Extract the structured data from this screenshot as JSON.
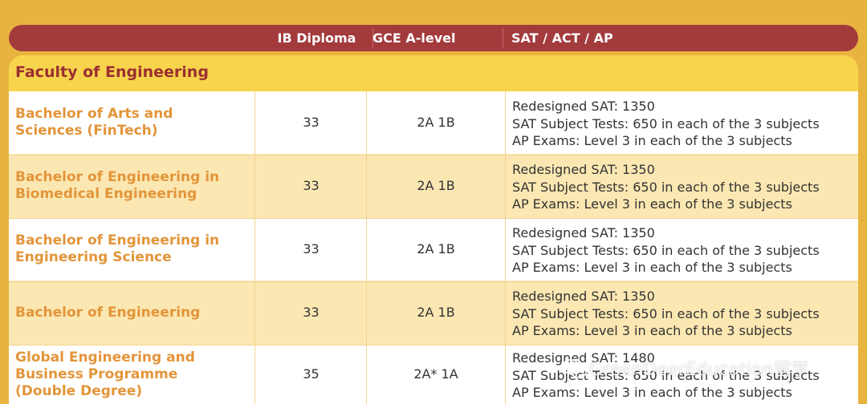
{
  "header": {
    "col_ib": "IB Diploma",
    "col_gce": "GCE A-level",
    "col_sat": "SAT / ACT / AP"
  },
  "faculty": "Faculty of Engineering",
  "rows": [
    {
      "program_line1": "Bachelor of Arts and",
      "program_line2": "Sciences (FinTech)",
      "program_line3": "",
      "ib": "33",
      "gce": "2A 1B",
      "sat": [
        "Redesigned SAT: 1350",
        "SAT Subject Tests: 650 in each of the 3 subjects",
        "AP Exams: Level 3 in each of the 3 subjects"
      ]
    },
    {
      "program_line1": "Bachelor of Engineering in",
      "program_line2": "Biomedical Engineering",
      "program_line3": "",
      "ib": "33",
      "gce": "2A 1B",
      "sat": [
        "Redesigned SAT: 1350",
        "SAT Subject Tests: 650 in each of the 3 subjects",
        "AP Exams: Level 3 in each of the 3 subjects"
      ]
    },
    {
      "program_line1": "Bachelor of Engineering in",
      "program_line2": "Engineering Science",
      "program_line3": "",
      "ib": "33",
      "gce": "2A 1B",
      "sat": [
        "Redesigned SAT: 1350",
        "SAT Subject Tests: 650 in each of the 3 subjects",
        "AP Exams: Level 3 in each of the 3 subjects"
      ]
    },
    {
      "program_line1": "Bachelor of Engineering",
      "program_line2": "",
      "program_line3": "",
      "ib": "33",
      "gce": "2A 1B",
      "sat": [
        "Redesigned SAT: 1350",
        "SAT Subject Tests: 650 in each of the 3 subjects",
        "AP Exams: Level 3 in each of the 3 subjects"
      ]
    },
    {
      "program_line1": "Global Engineering and",
      "program_line2": "Business Programme",
      "program_line3": "(Double Degree)",
      "ib": "35",
      "gce": "2A* 1A",
      "sat": [
        "Redesigned SAT: 1480",
        "SAT Subject Tests: 650 in each of the 3 subjects",
        "AP Exams: Level 3 in each of the 3 subjects"
      ]
    }
  ],
  "watermark": "GreenDeerEducation留学",
  "watermark_icon": "wechat-icon",
  "colors": {
    "background": "#e8b440",
    "header_bar": "#a33a3c",
    "faculty_row": "#f7d44c",
    "program_text": "#e3953a",
    "faculty_text": "#9b2f30"
  }
}
